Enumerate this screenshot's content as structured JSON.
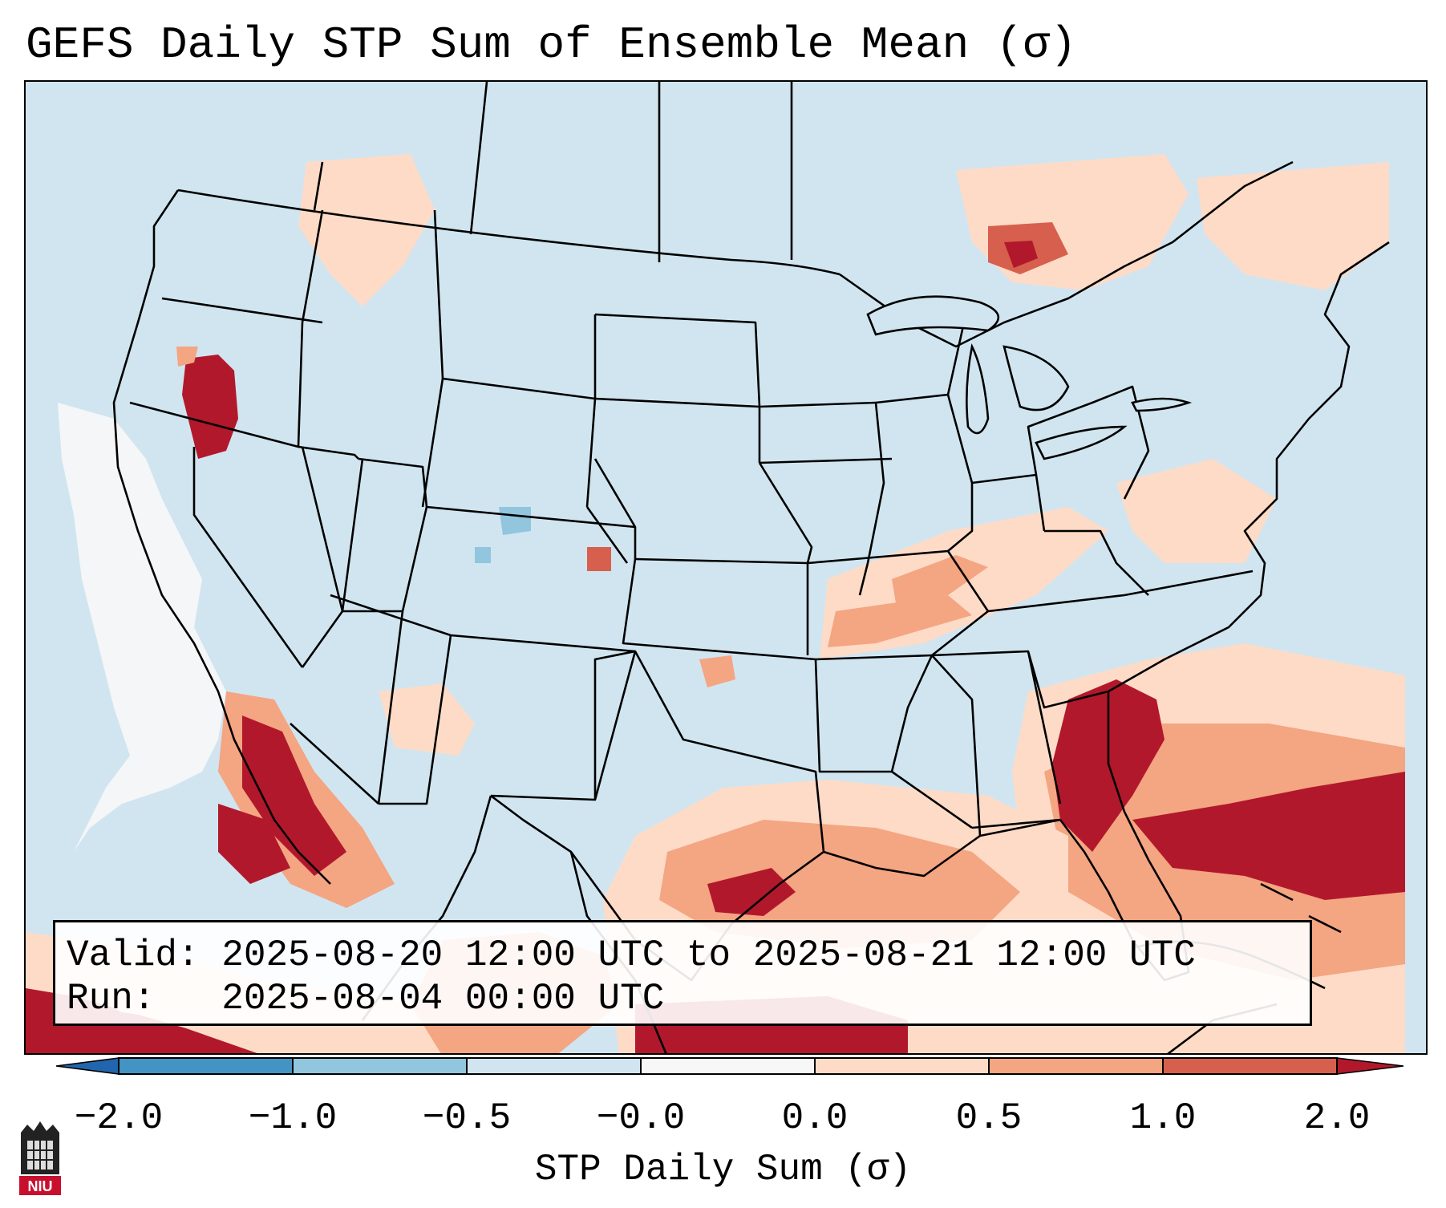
{
  "title": "GEFS Daily STP Sum of Ensemble Mean (σ)",
  "valid_line": "Valid: 2025-08-20 12:00 UTC to 2025-08-21 12:00 UTC",
  "run_line": "Run:   2025-08-04 00:00 UTC",
  "colorbar": {
    "title": "STP Daily Sum (σ)",
    "tick_labels": [
      "−2.0",
      "−1.0",
      "−0.5",
      "−0.0",
      "0.0",
      "0.5",
      "1.0",
      "2.0"
    ],
    "bin_colors": [
      "#4393c3",
      "#92c5de",
      "#d1e5f0",
      "#f7f7f7",
      "#fddbc7",
      "#f4a582",
      "#d6604d"
    ],
    "under_color": "#2166ac",
    "over_color": "#b2182b"
  },
  "colors": {
    "ocean_fill": "#d1e5f0",
    "neutral": "#f7f7f7",
    "light_pos": "#fddbc7",
    "mid_pos": "#f4a582",
    "high_pos": "#d6604d",
    "extreme_pos": "#b2182b",
    "light_neg": "#92c5de"
  },
  "logo": {
    "text": "NIU"
  }
}
